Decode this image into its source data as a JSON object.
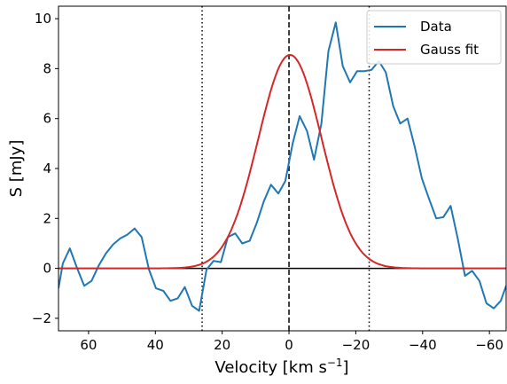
{
  "chart_data": {
    "type": "line",
    "xlabel_main": "Velocity [km s",
    "xlabel_sup": "−1",
    "xlabel_end": "]",
    "ylabel": "S [mJy]",
    "xlim": [
      69,
      -65
    ],
    "ylim": [
      -2.5,
      10.5
    ],
    "x_ticks": [
      60,
      40,
      20,
      0,
      -20,
      -40,
      -60
    ],
    "x_tick_labels": [
      "60",
      "40",
      "20",
      "0",
      "−20",
      "−40",
      "−60"
    ],
    "y_ticks": [
      -2,
      0,
      2,
      4,
      6,
      8,
      10
    ],
    "y_tick_labels": [
      "−2",
      "0",
      "2",
      "4",
      "6",
      "8",
      "10"
    ],
    "grid": false,
    "legend_position": "top-right",
    "series": [
      {
        "name": "Data",
        "color": "#1f77b4",
        "x": [
          69,
          67.7,
          65.6,
          63.4,
          61.3,
          59.1,
          57.0,
          54.8,
          52.7,
          50.5,
          48.4,
          46.2,
          44.1,
          41.9,
          39.8,
          37.6,
          35.5,
          33.3,
          31.2,
          29.0,
          26.9,
          24.7,
          22.6,
          20.4,
          18.3,
          16.1,
          14.0,
          11.8,
          9.7,
          7.5,
          5.4,
          3.2,
          1.1,
          -1.1,
          -3.2,
          -5.4,
          -7.5,
          -9.7,
          -11.8,
          -14.0,
          -16.1,
          -18.3,
          -20.4,
          -22.6,
          -24.7,
          -26.9,
          -29.0,
          -31.2,
          -33.3,
          -35.5,
          -37.6,
          -39.8,
          -41.9,
          -44.1,
          -46.2,
          -48.4,
          -50.5,
          -52.7,
          -54.8,
          -57.0,
          -59.1,
          -61.3,
          -63.4,
          -65.0
        ],
        "y": [
          -0.8,
          0.2,
          0.8,
          0.0,
          -0.7,
          -0.5,
          0.1,
          0.6,
          0.95,
          1.2,
          1.35,
          1.6,
          1.25,
          -0.05,
          -0.8,
          -0.9,
          -1.3,
          -1.2,
          -0.75,
          -1.5,
          -1.7,
          -0.05,
          0.3,
          0.25,
          1.25,
          1.4,
          1.0,
          1.1,
          1.8,
          2.7,
          3.35,
          3.0,
          3.5,
          5.0,
          6.1,
          5.5,
          4.35,
          5.8,
          8.7,
          9.85,
          8.1,
          7.45,
          7.9,
          7.9,
          7.95,
          8.3,
          7.85,
          6.5,
          5.8,
          6.0,
          4.9,
          3.6,
          2.8,
          2.0,
          2.05,
          2.5,
          1.2,
          -0.3,
          -0.1,
          -0.5,
          -1.4,
          -1.6,
          -1.3,
          -0.7
        ]
      },
      {
        "name": "Gauss fit",
        "color": "#d62728",
        "amplitude": 8.55,
        "center": -0.3,
        "sigma": 9.5
      }
    ],
    "vlines": [
      {
        "x": 26,
        "style": "dotted"
      },
      {
        "x": 0,
        "style": "dashed"
      },
      {
        "x": -24,
        "style": "dotted"
      }
    ],
    "hline": {
      "y": 0,
      "color": "#000000"
    }
  }
}
